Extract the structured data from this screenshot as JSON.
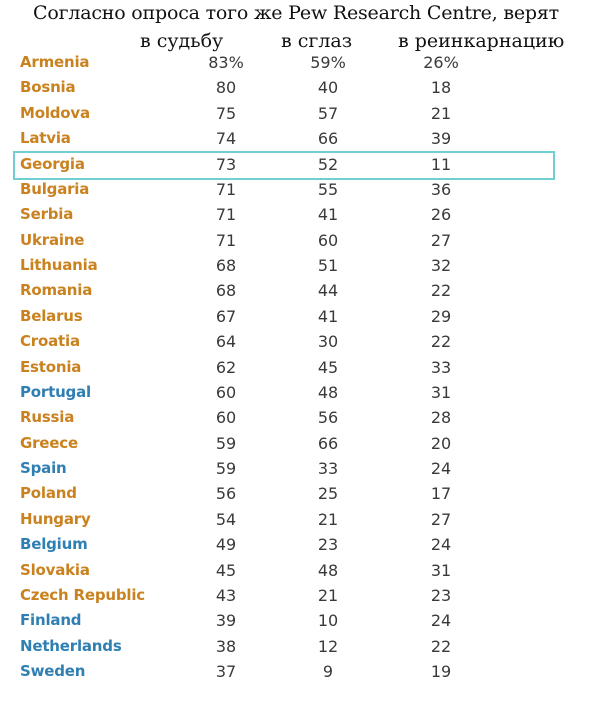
{
  "title": "Согласно опроса того же Pew Research Centre, верят",
  "colors": {
    "orange": "#c9821f",
    "blue": "#2f7fb3",
    "highlight_border": "#70cfd0"
  },
  "chart_data": {
    "type": "table",
    "title": "Согласно опроса того же Pew Research Centre, верят",
    "columns": [
      "в судьбу",
      "в сглаз",
      "в реинкарнацию"
    ],
    "highlighted_row": "Georgia",
    "rows": [
      {
        "country": "Armenia",
        "color": "orange",
        "fate": "83%",
        "evil_eye": "59%",
        "reincarnation": "26%"
      },
      {
        "country": "Bosnia",
        "color": "orange",
        "fate": "80",
        "evil_eye": "40",
        "reincarnation": "18"
      },
      {
        "country": "Moldova",
        "color": "orange",
        "fate": "75",
        "evil_eye": "57",
        "reincarnation": "21"
      },
      {
        "country": "Latvia",
        "color": "orange",
        "fate": "74",
        "evil_eye": "66",
        "reincarnation": "39"
      },
      {
        "country": "Georgia",
        "color": "orange",
        "fate": "73",
        "evil_eye": "52",
        "reincarnation": "11"
      },
      {
        "country": "Bulgaria",
        "color": "orange",
        "fate": "71",
        "evil_eye": "55",
        "reincarnation": "36"
      },
      {
        "country": "Serbia",
        "color": "orange",
        "fate": "71",
        "evil_eye": "41",
        "reincarnation": "26"
      },
      {
        "country": "Ukraine",
        "color": "orange",
        "fate": "71",
        "evil_eye": "60",
        "reincarnation": "27"
      },
      {
        "country": "Lithuania",
        "color": "orange",
        "fate": "68",
        "evil_eye": "51",
        "reincarnation": "32"
      },
      {
        "country": "Romania",
        "color": "orange",
        "fate": "68",
        "evil_eye": "44",
        "reincarnation": "22"
      },
      {
        "country": "Belarus",
        "color": "orange",
        "fate": "67",
        "evil_eye": "41",
        "reincarnation": "29"
      },
      {
        "country": "Croatia",
        "color": "orange",
        "fate": "64",
        "evil_eye": "30",
        "reincarnation": "22"
      },
      {
        "country": "Estonia",
        "color": "orange",
        "fate": "62",
        "evil_eye": "45",
        "reincarnation": "33"
      },
      {
        "country": "Portugal",
        "color": "blue",
        "fate": "60",
        "evil_eye": "48",
        "reincarnation": "31"
      },
      {
        "country": "Russia",
        "color": "orange",
        "fate": "60",
        "evil_eye": "56",
        "reincarnation": "28"
      },
      {
        "country": "Greece",
        "color": "orange",
        "fate": "59",
        "evil_eye": "66",
        "reincarnation": "20"
      },
      {
        "country": "Spain",
        "color": "blue",
        "fate": "59",
        "evil_eye": "33",
        "reincarnation": "24"
      },
      {
        "country": "Poland",
        "color": "orange",
        "fate": "56",
        "evil_eye": "25",
        "reincarnation": "17"
      },
      {
        "country": "Hungary",
        "color": "orange",
        "fate": "54",
        "evil_eye": "21",
        "reincarnation": "27"
      },
      {
        "country": "Belgium",
        "color": "blue",
        "fate": "49",
        "evil_eye": "23",
        "reincarnation": "24"
      },
      {
        "country": "Slovakia",
        "color": "orange",
        "fate": "45",
        "evil_eye": "48",
        "reincarnation": "31"
      },
      {
        "country": "Czech Republic",
        "color": "orange",
        "fate": "43",
        "evil_eye": "21",
        "reincarnation": "23"
      },
      {
        "country": "Finland",
        "color": "blue",
        "fate": "39",
        "evil_eye": "10",
        "reincarnation": "24"
      },
      {
        "country": "Netherlands",
        "color": "blue",
        "fate": "38",
        "evil_eye": "12",
        "reincarnation": "22"
      },
      {
        "country": "Sweden",
        "color": "blue",
        "fate": "37",
        "evil_eye": "9",
        "reincarnation": "19"
      }
    ]
  }
}
